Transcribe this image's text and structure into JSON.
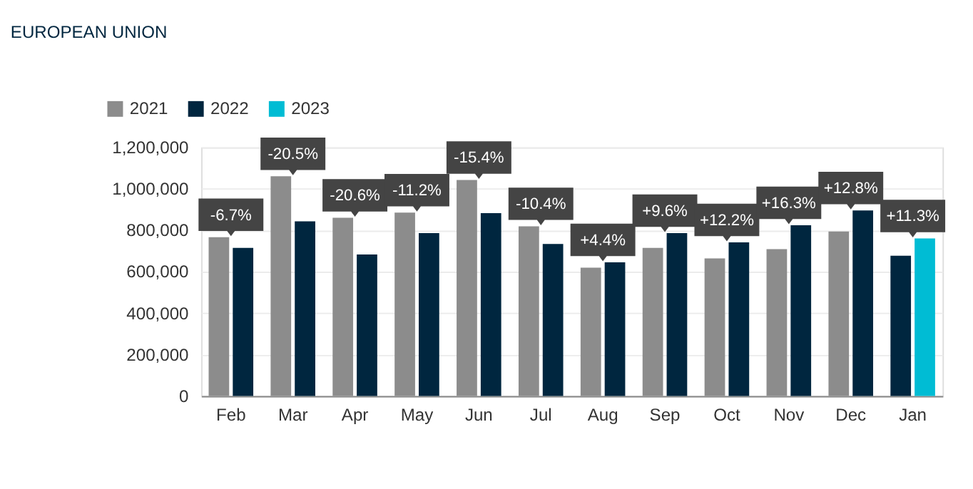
{
  "chart_data": {
    "type": "bar",
    "title": "EUROPEAN UNION",
    "categories": [
      "Feb",
      "Mar",
      "Apr",
      "May",
      "Jun",
      "Jul",
      "Aug",
      "Sep",
      "Oct",
      "Nov",
      "Dec",
      "Jan"
    ],
    "series": [
      {
        "name": "2021",
        "color": "#8c8c8c",
        "values": [
          766000,
          1060000,
          860000,
          885000,
          1042000,
          819000,
          619000,
          715000,
          664000,
          709000,
          794000,
          null
        ]
      },
      {
        "name": "2022",
        "color": "#00263f",
        "values": [
          715000,
          843000,
          683000,
          786000,
          882000,
          734000,
          645000,
          786000,
          741000,
          824000,
          895000,
          677000
        ]
      },
      {
        "name": "2023",
        "color": "#00bcd4",
        "values": [
          null,
          null,
          null,
          null,
          null,
          null,
          null,
          null,
          null,
          null,
          null,
          760000
        ]
      }
    ],
    "ylim": [
      0,
      1200000
    ],
    "yticks": [
      0,
      {
        "value": 200000,
        "label": "200,000"
      },
      {
        "value": 400000,
        "label": "400,000"
      },
      {
        "value": 600000,
        "label": "600,000"
      },
      {
        "value": 800000,
        "label": "800,000"
      },
      {
        "value": 1000000,
        "label": "1,000,000"
      },
      {
        "value": 1200000,
        "label": "1,200,000"
      }
    ],
    "grid": "y",
    "legend": "top left",
    "annotations": [
      {
        "text": "-6.7%",
        "x": "Feb",
        "y": 766000
      },
      {
        "text": "-20.5%",
        "x": "Mar",
        "y": 1060000
      },
      {
        "text": "-20.6%",
        "x": "Apr",
        "y": 860000
      },
      {
        "text": "-11.2%",
        "x": "May",
        "y": 885000
      },
      {
        "text": "-15.4%",
        "x": "Jun",
        "y": 1042000
      },
      {
        "text": "-10.4%",
        "x": "Jul",
        "y": 819000
      },
      {
        "text": "+4.4%",
        "x": "Aug",
        "y": 645000
      },
      {
        "text": "+9.6%",
        "x": "Sep",
        "y": 786000
      },
      {
        "text": "+12.2%",
        "x": "Oct",
        "y": 741000
      },
      {
        "text": "+16.3%",
        "x": "Nov",
        "y": 824000
      },
      {
        "text": "+12.8%",
        "x": "Dec",
        "y": 895000
      },
      {
        "text": "+11.3%",
        "x": "Jan",
        "y": 760000
      }
    ]
  }
}
